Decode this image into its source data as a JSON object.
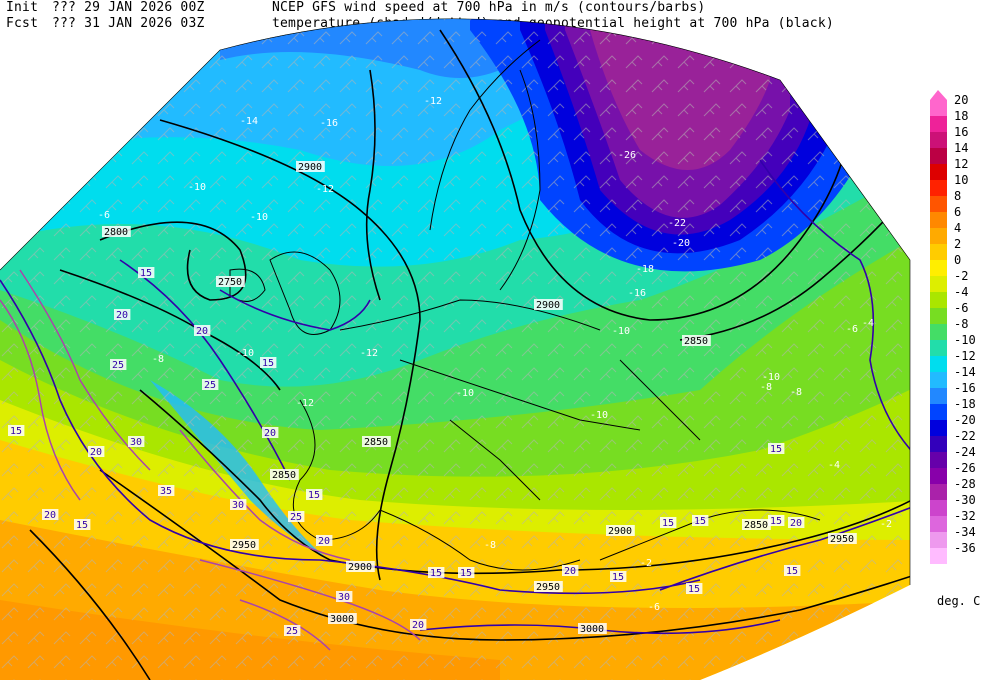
{
  "header": {
    "init_label": "Init",
    "init_run": "??? 29 JAN 2026 00Z",
    "fcst_label": "Fcst",
    "fcst_run": "??? 31 JAN 2026 03Z",
    "line1_title": "NCEP GFS wind speed at 700 hPa in m/s (contours/barbs)",
    "line2_title": "temperature (shaded/dotted) and geopotential height at 700 hPa (black)"
  },
  "legend": {
    "units": "deg. C",
    "scale": [
      {
        "label": "20",
        "color": "#ff66cc"
      },
      {
        "label": "18",
        "color": "#ee2299"
      },
      {
        "label": "16",
        "color": "#cc1177"
      },
      {
        "label": "14",
        "color": "#bb0044"
      },
      {
        "label": "12",
        "color": "#dd0000"
      },
      {
        "label": "10",
        "color": "#ff2200"
      },
      {
        "label": "8",
        "color": "#ff5500"
      },
      {
        "label": "6",
        "color": "#ff8800"
      },
      {
        "label": "4",
        "color": "#ffaa00"
      },
      {
        "label": "2",
        "color": "#ffcc00"
      },
      {
        "label": "0",
        "color": "#ffee00"
      },
      {
        "label": "-2",
        "color": "#ddee00"
      },
      {
        "label": "-4",
        "color": "#aae600"
      },
      {
        "label": "-6",
        "color": "#77dd22"
      },
      {
        "label": "-8",
        "color": "#44dd66"
      },
      {
        "label": "-10",
        "color": "#22ddaa"
      },
      {
        "label": "-12",
        "color": "#00ddee"
      },
      {
        "label": "-14",
        "color": "#22bbff"
      },
      {
        "label": "-16",
        "color": "#2288ff"
      },
      {
        "label": "-18",
        "color": "#0044ff"
      },
      {
        "label": "-20",
        "color": "#0000dd"
      },
      {
        "label": "-22",
        "color": "#3300bb"
      },
      {
        "label": "-24",
        "color": "#6600aa"
      },
      {
        "label": "-26",
        "color": "#8800aa"
      },
      {
        "label": "-28",
        "color": "#aa22aa"
      },
      {
        "label": "-30",
        "color": "#cc44cc"
      },
      {
        "label": "-32",
        "color": "#dd66dd"
      },
      {
        "label": "-34",
        "color": "#ee99ee"
      },
      {
        "label": "-36",
        "color": "#ffbbff"
      }
    ]
  },
  "map": {
    "projection_shape": "polar-stereographic wedge",
    "height_labels": [
      "2800",
      "2750",
      "2850",
      "2900",
      "2850",
      "2850",
      "2900",
      "2850",
      "2950",
      "2950",
      "2900",
      "2950",
      "3000",
      "3000",
      "2900"
    ],
    "temp_labels": [
      "-14",
      "-16",
      "-12",
      "-12",
      "-10",
      "-10",
      "-6",
      "-10",
      "-12",
      "-8",
      "-12",
      "-10",
      "-10",
      "-10",
      "-8",
      "-26",
      "-22",
      "-20",
      "-18",
      "-16",
      "-10",
      "-6",
      "-4",
      "-8",
      "-6",
      "-4",
      "-2",
      "-8",
      "-2"
    ],
    "wind_labels": [
      "15",
      "20",
      "15",
      "20",
      "25",
      "20",
      "15",
      "25",
      "30",
      "15",
      "20",
      "35",
      "30",
      "25",
      "15",
      "20",
      "20",
      "15",
      "15",
      "20",
      "15",
      "15",
      "15",
      "15",
      "15",
      "20",
      "15",
      "30",
      "25",
      "20",
      "15"
    ],
    "colors": {
      "height_contour": "#000000",
      "wind_contour_low": "#3300aa",
      "wind_contour_high": "#aa44aa",
      "barbs": "#b0b0b0",
      "coastline": "#000000"
    }
  }
}
